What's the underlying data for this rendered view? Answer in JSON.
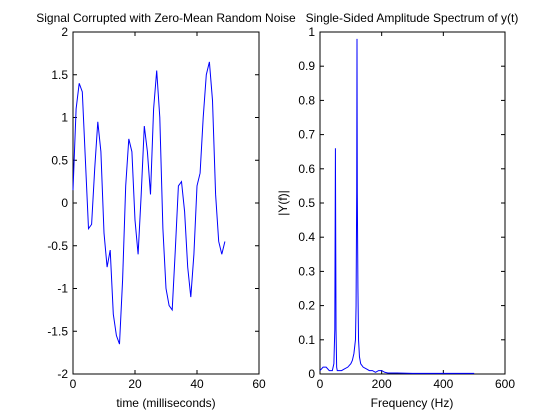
{
  "chart_data": [
    {
      "type": "line",
      "title": "Signal Corrupted with Zero-Mean Random Noise",
      "xlabel": "time (milliseconds)",
      "ylabel": "",
      "xlim": [
        0,
        60
      ],
      "ylim": [
        -2,
        2
      ],
      "xticks": [
        "0",
        "20",
        "40",
        "60"
      ],
      "yticks": [
        "-2",
        "-1.5",
        "-1",
        "-0.5",
        "0",
        "0.5",
        "1",
        "1.5",
        "2"
      ],
      "line_color": "#0000ff",
      "grid": false,
      "series": [
        {
          "x": [
            0,
            1,
            2,
            3,
            4,
            5,
            6,
            7,
            8,
            9,
            10,
            11,
            12,
            13,
            14,
            15,
            16,
            17,
            18,
            19,
            20,
            21,
            22,
            23,
            24,
            25,
            26,
            27,
            28,
            29,
            30,
            31,
            32,
            33,
            34,
            35,
            36,
            37,
            38,
            39,
            40,
            41,
            42,
            43,
            44,
            45,
            46,
            47,
            48,
            49
          ],
          "y": [
            0.15,
            1.1,
            1.4,
            1.3,
            0.5,
            -0.3,
            -0.25,
            0.4,
            0.95,
            0.6,
            -0.35,
            -0.75,
            -0.55,
            -1.3,
            -1.55,
            -1.65,
            -0.9,
            0.2,
            0.75,
            0.6,
            -0.2,
            -0.6,
            0.1,
            0.9,
            0.6,
            0.1,
            1.1,
            1.55,
            1.0,
            -0.3,
            -1.0,
            -1.2,
            -1.25,
            -0.55,
            0.2,
            0.25,
            -0.1,
            -0.75,
            -1.1,
            -0.6,
            0.2,
            0.35,
            1.0,
            1.5,
            1.65,
            1.2,
            0.1,
            -0.45,
            -0.6,
            -0.45
          ]
        }
      ]
    },
    {
      "type": "line",
      "title": "Single-Sided Amplitude Spectrum of y(t)",
      "xlabel": "Frequency (Hz)",
      "ylabel": "|Y(f)|",
      "xlim": [
        0,
        600
      ],
      "ylim": [
        0,
        1
      ],
      "xticks": [
        "0",
        "200",
        "400",
        "600"
      ],
      "yticks": [
        "0",
        "0.1",
        "0.2",
        "0.3",
        "0.4",
        "0.5",
        "0.6",
        "0.7",
        "0.8",
        "0.9",
        "1"
      ],
      "line_color": "#0000ff",
      "grid": false,
      "series": [
        {
          "x": [
            0,
            10,
            20,
            30,
            40,
            45,
            48,
            50,
            52,
            54,
            56,
            60,
            70,
            80,
            90,
            100,
            105,
            110,
            115,
            117,
            119,
            120,
            121,
            123,
            125,
            128,
            132,
            140,
            150,
            160,
            170,
            180,
            190,
            200,
            210,
            220,
            250,
            300,
            350,
            400,
            450,
            500
          ],
          "y": [
            0.01,
            0.02,
            0.02,
            0.01,
            0.01,
            0.03,
            0.13,
            0.66,
            0.13,
            0.02,
            0.01,
            0.01,
            0.01,
            0.015,
            0.02,
            0.03,
            0.04,
            0.06,
            0.1,
            0.2,
            0.53,
            0.98,
            0.53,
            0.25,
            0.1,
            0.05,
            0.03,
            0.02,
            0.015,
            0.01,
            0.01,
            0.005,
            0.01,
            0.01,
            0.005,
            0.003,
            0.003,
            0.002,
            0.002,
            0.002,
            0.002,
            0.002
          ]
        }
      ]
    }
  ]
}
